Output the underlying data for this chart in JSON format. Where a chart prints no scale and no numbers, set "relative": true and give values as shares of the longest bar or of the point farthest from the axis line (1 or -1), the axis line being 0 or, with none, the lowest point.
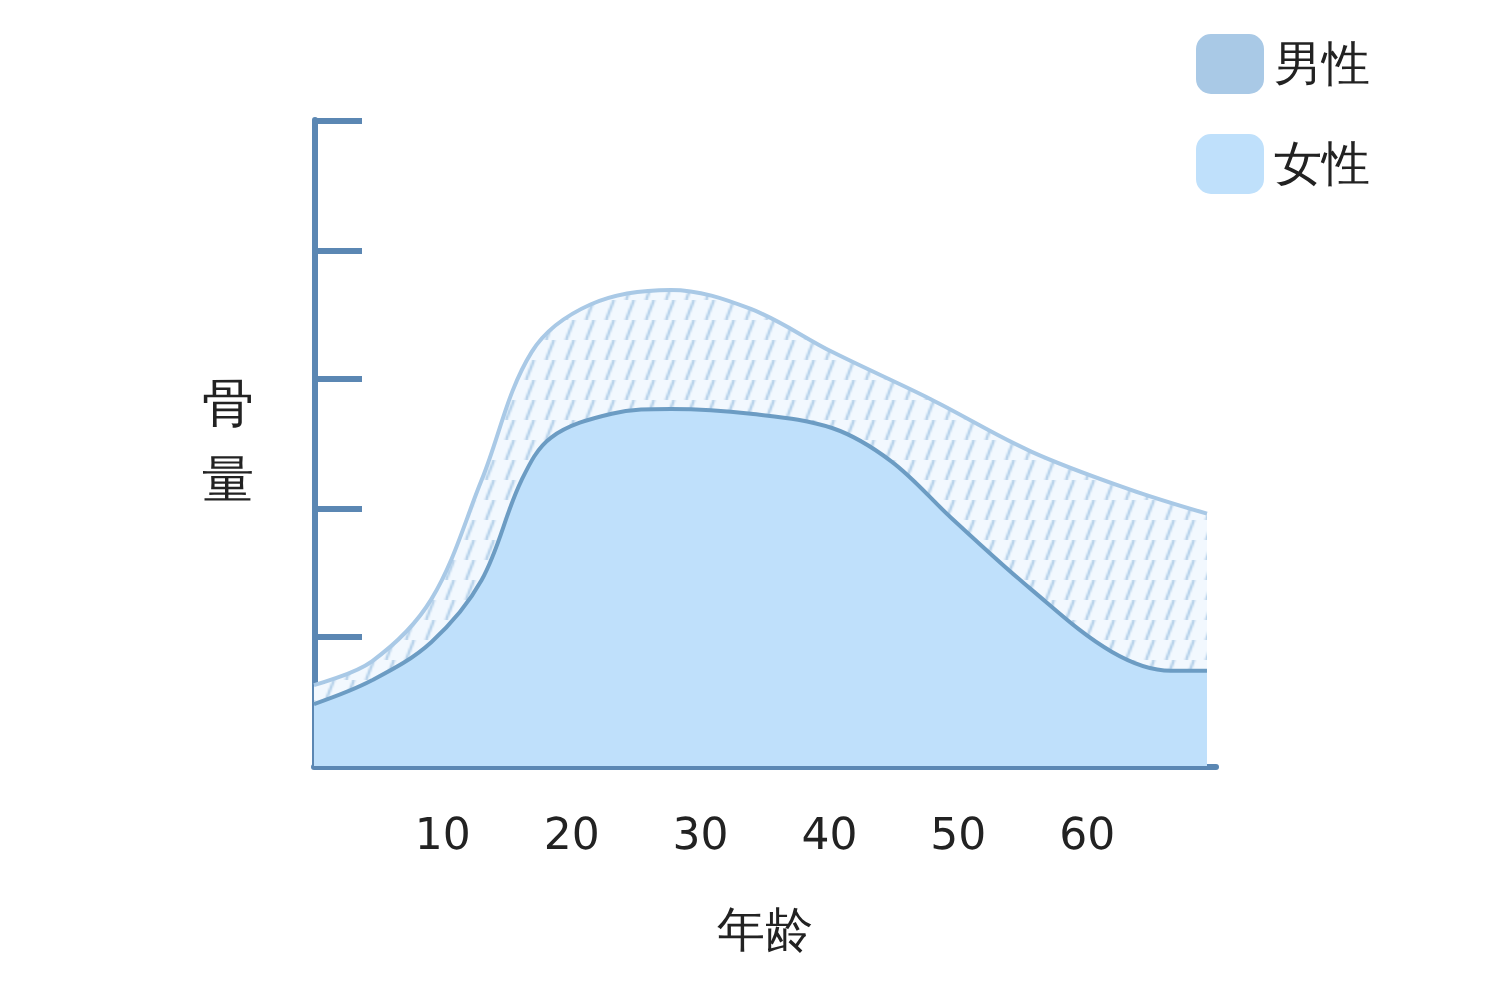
{
  "chart_data": {
    "type": "area",
    "relative": true,
    "xlabel": "年龄",
    "ylabel": "骨量",
    "xlim": [
      0,
      70
    ],
    "xticks": [
      10,
      20,
      30,
      40,
      50,
      60
    ],
    "legend": "top right",
    "grid": false,
    "series": [
      {
        "name": "男性",
        "color": "#a9c9e6",
        "x": [
          0,
          4.5,
          9.1,
          13,
          16.9,
          21.5,
          27.7,
          33.9,
          40.2,
          47.9,
          55.7,
          63.4,
          69.3
        ],
        "values": [
          0.17,
          0.22,
          0.35,
          0.6,
          0.87,
          0.97,
          1,
          0.96,
          0.87,
          0.77,
          0.66,
          0.58,
          0.53
        ]
      },
      {
        "name": "女性",
        "color": "#bfe0fb",
        "x": [
          0,
          4.5,
          9.1,
          13,
          16.1,
          18.4,
          23.1,
          27.7,
          33.9,
          40.2,
          44.8,
          49.5,
          55.7,
          61.9,
          66.5,
          69.3
        ],
        "values": [
          0.13,
          0.18,
          0.26,
          0.39,
          0.6,
          0.69,
          0.74,
          0.75,
          0.74,
          0.71,
          0.64,
          0.52,
          0.37,
          0.24,
          0.2,
          0.2
        ]
      }
    ]
  }
}
